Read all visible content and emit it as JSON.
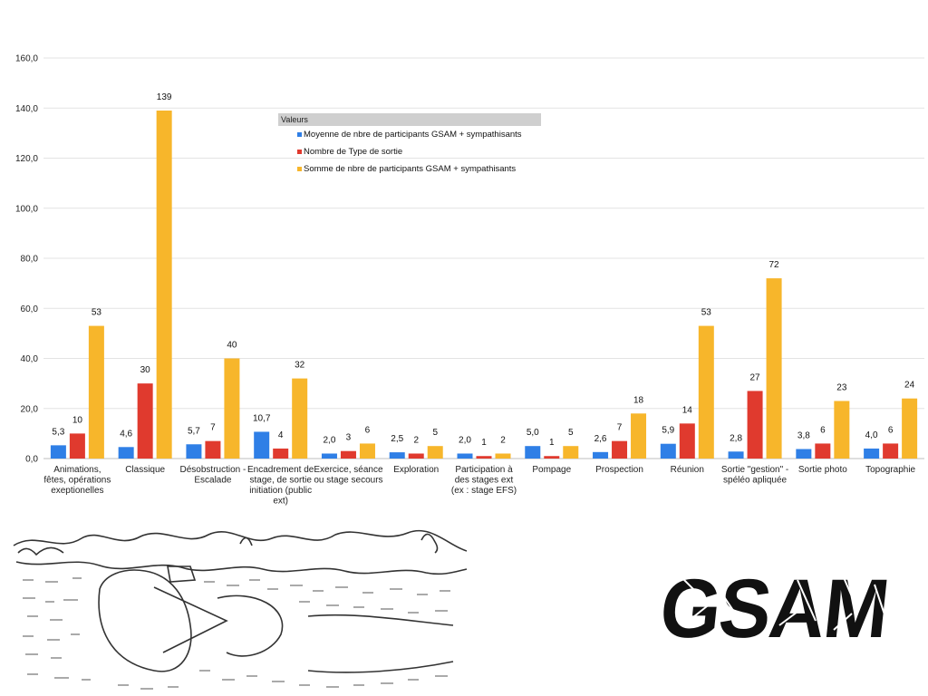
{
  "chart_data": {
    "type": "bar",
    "ylim": [
      0,
      160
    ],
    "yticks": [
      "0,0",
      "20,0",
      "40,0",
      "60,0",
      "80,0",
      "100,0",
      "120,0",
      "140,0",
      "160,0"
    ],
    "grid": true,
    "legend_position": "top-center",
    "legend_title": "Valeurs",
    "categories": [
      [
        "Animations,",
        "fêtes, opérations",
        "exeptionelles"
      ],
      [
        "Classique"
      ],
      [
        "Désobstruction -",
        "Escalade"
      ],
      [
        "Encadrement de",
        "stage, de sortie",
        "initiation (public",
        "ext)"
      ],
      [
        "Exercice, séance",
        "ou stage secours"
      ],
      [
        "Exploration"
      ],
      [
        "Participation à",
        "des stages ext",
        "(ex : stage EFS)"
      ],
      [
        "Pompage"
      ],
      [
        "Prospection"
      ],
      [
        "Réunion"
      ],
      [
        "Sortie \"gestion\" -",
        "spéléo apliquée"
      ],
      [
        "Sortie photo"
      ],
      [
        "Topographie"
      ]
    ],
    "series": [
      {
        "name": "Moyenne de nbre de participants GSAM + sympathisants",
        "color": "#2f7fe6",
        "values": [
          5.3,
          4.6,
          5.7,
          10.7,
          2.0,
          2.5,
          2.0,
          5.0,
          2.6,
          5.9,
          2.8,
          3.8,
          4.0
        ],
        "labels": [
          "5,3",
          "4,6",
          "5,7",
          "10,7",
          "2,0",
          "2,5",
          "2,0",
          "5,0",
          "2,6",
          "5,9",
          "2,8",
          "3,8",
          "4,0"
        ]
      },
      {
        "name": "Nombre de Type de sortie",
        "color": "#e03a2e",
        "values": [
          10,
          30,
          7,
          4,
          3,
          2,
          1,
          1,
          7,
          14,
          27,
          6,
          6
        ],
        "labels": [
          "10",
          "30",
          "7",
          "4",
          "3",
          "2",
          "1",
          "1",
          "7",
          "14",
          "27",
          "6",
          "6"
        ]
      },
      {
        "name": "Somme de nbre de participants GSAM + sympathisants",
        "color": "#f7b62b",
        "values": [
          53,
          139,
          40,
          32,
          6,
          5,
          2,
          5,
          18,
          53,
          72,
          23,
          24
        ],
        "labels": [
          "53",
          "139",
          "40",
          "32",
          "6",
          "5",
          "2",
          "5",
          "18",
          "53",
          "72",
          "23",
          "24"
        ]
      }
    ]
  },
  "logo": {
    "text": "GSAM"
  }
}
